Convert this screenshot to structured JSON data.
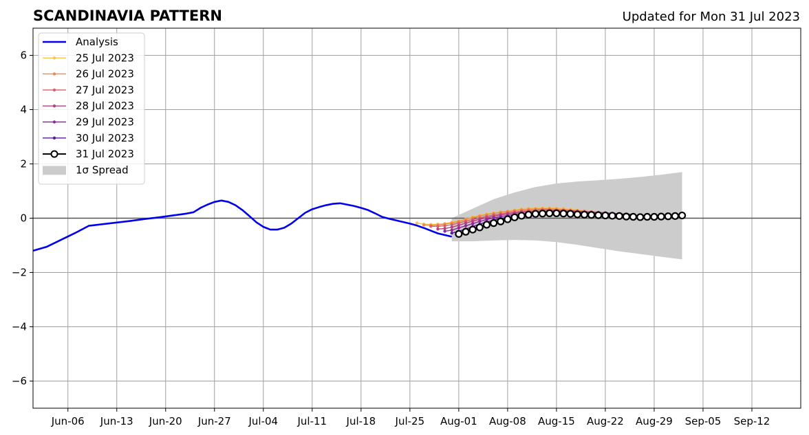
{
  "chart_data": {
    "type": "line",
    "title": "SCANDINAVIA PATTERN",
    "subtitle": "Updated for Mon 31 Jul 2023",
    "xlabel": "",
    "ylabel": "",
    "xlim": [
      "2023-06-01",
      "2023-09-19"
    ],
    "ylim": [
      -7,
      7
    ],
    "grid": true,
    "legend_position": "top-left",
    "x_ticks": [
      "Jun-06",
      "Jun-13",
      "Jun-20",
      "Jun-27",
      "Jul-04",
      "Jul-11",
      "Jul-18",
      "Jul-25",
      "Aug-01",
      "Aug-08",
      "Aug-15",
      "Aug-22",
      "Aug-29",
      "Sep-05",
      "Sep-12"
    ],
    "x_tick_dates": [
      "2023-06-06",
      "2023-06-13",
      "2023-06-20",
      "2023-06-27",
      "2023-07-04",
      "2023-07-11",
      "2023-07-18",
      "2023-07-25",
      "2023-08-01",
      "2023-08-08",
      "2023-08-15",
      "2023-08-22",
      "2023-08-29",
      "2023-09-05",
      "2023-09-12"
    ],
    "y_ticks": [
      "−6",
      "−4",
      "−2",
      "0",
      "2",
      "4",
      "6"
    ],
    "y_tick_values": [
      -6,
      -4,
      -2,
      0,
      2,
      4,
      6
    ],
    "analysis": {
      "name": "Analysis",
      "color": "#0000ee",
      "x": [
        "2023-06-01",
        "2023-06-03",
        "2023-06-05",
        "2023-06-07",
        "2023-06-09",
        "2023-06-11",
        "2023-06-13",
        "2023-06-15",
        "2023-06-17",
        "2023-06-19",
        "2023-06-21",
        "2023-06-23",
        "2023-06-24",
        "2023-06-25",
        "2023-06-26",
        "2023-06-27",
        "2023-06-28",
        "2023-06-29",
        "2023-06-30",
        "2023-07-01",
        "2023-07-02",
        "2023-07-03",
        "2023-07-04",
        "2023-07-05",
        "2023-07-06",
        "2023-07-07",
        "2023-07-08",
        "2023-07-09",
        "2023-07-10",
        "2023-07-11",
        "2023-07-12",
        "2023-07-13",
        "2023-07-14",
        "2023-07-15",
        "2023-07-16",
        "2023-07-17",
        "2023-07-18",
        "2023-07-19",
        "2023-07-20",
        "2023-07-21",
        "2023-07-22",
        "2023-07-23",
        "2023-07-24",
        "2023-07-25",
        "2023-07-26",
        "2023-07-27",
        "2023-07-28",
        "2023-07-29",
        "2023-07-30",
        "2023-07-31"
      ],
      "y": [
        -1.2,
        -1.05,
        -0.8,
        -0.55,
        -0.28,
        -0.22,
        -0.16,
        -0.1,
        -0.03,
        0.03,
        0.1,
        0.17,
        0.22,
        0.38,
        0.5,
        0.6,
        0.65,
        0.6,
        0.48,
        0.3,
        0.08,
        -0.15,
        -0.32,
        -0.42,
        -0.42,
        -0.35,
        -0.2,
        0.0,
        0.2,
        0.33,
        0.41,
        0.48,
        0.53,
        0.55,
        0.5,
        0.45,
        0.38,
        0.3,
        0.18,
        0.05,
        -0.02,
        -0.08,
        -0.14,
        -0.2,
        -0.27,
        -0.36,
        -0.46,
        -0.56,
        -0.62,
        -0.68
      ]
    },
    "spread": {
      "name": "1σ Spread",
      "color": "#cccccc",
      "x": [
        "2023-07-31",
        "2023-08-03",
        "2023-08-06",
        "2023-08-09",
        "2023-08-12",
        "2023-08-15",
        "2023-08-18",
        "2023-08-21",
        "2023-08-24",
        "2023-08-27",
        "2023-08-30",
        "2023-09-02"
      ],
      "upper": [
        0.0,
        0.35,
        0.7,
        0.95,
        1.15,
        1.28,
        1.35,
        1.4,
        1.45,
        1.52,
        1.6,
        1.7
      ],
      "lower": [
        -0.85,
        -0.85,
        -0.82,
        -0.8,
        -0.82,
        -0.88,
        -0.98,
        -1.1,
        -1.22,
        -1.32,
        -1.42,
        -1.52
      ]
    },
    "series": [
      {
        "name": "25 Jul 2023",
        "color": "#f9c349",
        "x": [
          "2023-07-26",
          "2023-07-27",
          "2023-07-28",
          "2023-07-29",
          "2023-07-30",
          "2023-07-31",
          "2023-08-01",
          "2023-08-02",
          "2023-08-03",
          "2023-08-04",
          "2023-08-05",
          "2023-08-06",
          "2023-08-07",
          "2023-08-08",
          "2023-08-09",
          "2023-08-10",
          "2023-08-11",
          "2023-08-12",
          "2023-08-13",
          "2023-08-14",
          "2023-08-15",
          "2023-08-16",
          "2023-08-17",
          "2023-08-18",
          "2023-08-19",
          "2023-08-20"
        ],
        "y": [
          -0.18,
          -0.22,
          -0.23,
          -0.22,
          -0.2,
          -0.15,
          -0.1,
          -0.03,
          0.04,
          0.1,
          0.15,
          0.19,
          0.23,
          0.26,
          0.3,
          0.34,
          0.36,
          0.37,
          0.38,
          0.38,
          0.37,
          0.35,
          0.33,
          0.3,
          0.27,
          0.24
        ]
      },
      {
        "name": "26 Jul 2023",
        "color": "#f08a4b",
        "x": [
          "2023-07-27",
          "2023-07-28",
          "2023-07-29",
          "2023-07-30",
          "2023-07-31",
          "2023-08-01",
          "2023-08-02",
          "2023-08-03",
          "2023-08-04",
          "2023-08-05",
          "2023-08-06",
          "2023-08-07",
          "2023-08-08",
          "2023-08-09",
          "2023-08-10",
          "2023-08-11",
          "2023-08-12",
          "2023-08-13",
          "2023-08-14",
          "2023-08-15",
          "2023-08-16",
          "2023-08-17",
          "2023-08-18",
          "2023-08-19",
          "2023-08-20",
          "2023-08-21"
        ],
        "y": [
          -0.25,
          -0.26,
          -0.25,
          -0.22,
          -0.18,
          -0.12,
          -0.05,
          0.02,
          0.08,
          0.13,
          0.18,
          0.22,
          0.25,
          0.28,
          0.31,
          0.33,
          0.34,
          0.35,
          0.35,
          0.34,
          0.32,
          0.3,
          0.28,
          0.26,
          0.24,
          0.22
        ]
      },
      {
        "name": "27 Jul 2023",
        "color": "#dc5e69",
        "x": [
          "2023-07-28",
          "2023-07-29",
          "2023-07-30",
          "2023-07-31",
          "2023-08-01",
          "2023-08-02",
          "2023-08-03",
          "2023-08-04",
          "2023-08-05",
          "2023-08-06",
          "2023-08-07",
          "2023-08-08",
          "2023-08-09",
          "2023-08-10",
          "2023-08-11",
          "2023-08-12",
          "2023-08-13",
          "2023-08-14",
          "2023-08-15",
          "2023-08-16",
          "2023-08-17",
          "2023-08-18",
          "2023-08-19",
          "2023-08-20",
          "2023-08-21",
          "2023-08-22",
          "2023-08-23"
        ],
        "y": [
          -0.3,
          -0.3,
          -0.28,
          -0.24,
          -0.18,
          -0.11,
          -0.05,
          0.01,
          0.07,
          0.12,
          0.16,
          0.2,
          0.23,
          0.26,
          0.28,
          0.3,
          0.31,
          0.31,
          0.3,
          0.29,
          0.28,
          0.26,
          0.24,
          0.22,
          0.2,
          0.19,
          0.17
        ]
      },
      {
        "name": "28 Jul 2023",
        "color": "#b8407f",
        "x": [
          "2023-07-29",
          "2023-07-30",
          "2023-07-31",
          "2023-08-01",
          "2023-08-02",
          "2023-08-03",
          "2023-08-04",
          "2023-08-05",
          "2023-08-06",
          "2023-08-07",
          "2023-08-08",
          "2023-08-09",
          "2023-08-10",
          "2023-08-11",
          "2023-08-12",
          "2023-08-13",
          "2023-08-14",
          "2023-08-15",
          "2023-08-16",
          "2023-08-17",
          "2023-08-18",
          "2023-08-19",
          "2023-08-20",
          "2023-08-21",
          "2023-08-22",
          "2023-08-23",
          "2023-08-24"
        ],
        "y": [
          -0.4,
          -0.38,
          -0.33,
          -0.26,
          -0.18,
          -0.11,
          -0.04,
          0.02,
          0.07,
          0.12,
          0.16,
          0.19,
          0.22,
          0.24,
          0.25,
          0.26,
          0.27,
          0.27,
          0.26,
          0.26,
          0.25,
          0.24,
          0.22,
          0.21,
          0.2,
          0.18,
          0.17
        ]
      },
      {
        "name": "29 Jul 2023",
        "color": "#9226a0",
        "x": [
          "2023-07-30",
          "2023-07-31",
          "2023-08-01",
          "2023-08-02",
          "2023-08-03",
          "2023-08-04",
          "2023-08-05",
          "2023-08-06",
          "2023-08-07",
          "2023-08-08",
          "2023-08-09",
          "2023-08-10",
          "2023-08-11",
          "2023-08-12",
          "2023-08-13",
          "2023-08-14",
          "2023-08-15",
          "2023-08-16",
          "2023-08-17",
          "2023-08-18",
          "2023-08-19",
          "2023-08-20",
          "2023-08-21",
          "2023-08-22",
          "2023-08-23",
          "2023-08-24",
          "2023-08-25",
          "2023-08-26"
        ],
        "y": [
          -0.48,
          -0.44,
          -0.36,
          -0.28,
          -0.2,
          -0.12,
          -0.05,
          0.01,
          0.06,
          0.1,
          0.14,
          0.17,
          0.19,
          0.21,
          0.22,
          0.23,
          0.24,
          0.24,
          0.23,
          0.22,
          0.21,
          0.2,
          0.19,
          0.18,
          0.17,
          0.16,
          0.15,
          0.14
        ]
      },
      {
        "name": "30 Jul 2023",
        "color": "#5a1a96",
        "x": [
          "2023-07-31",
          "2023-08-01",
          "2023-08-02",
          "2023-08-03",
          "2023-08-04",
          "2023-08-05",
          "2023-08-06",
          "2023-08-07",
          "2023-08-08",
          "2023-08-09",
          "2023-08-10",
          "2023-08-11",
          "2023-08-12",
          "2023-08-13",
          "2023-08-14",
          "2023-08-15",
          "2023-08-16",
          "2023-08-17",
          "2023-08-18",
          "2023-08-19",
          "2023-08-20",
          "2023-08-21",
          "2023-08-22",
          "2023-08-23",
          "2023-08-24",
          "2023-08-25",
          "2023-08-26",
          "2023-08-27",
          "2023-08-28"
        ],
        "y": [
          -0.55,
          -0.48,
          -0.4,
          -0.31,
          -0.22,
          -0.14,
          -0.07,
          -0.01,
          0.04,
          0.08,
          0.11,
          0.14,
          0.16,
          0.17,
          0.18,
          0.18,
          0.18,
          0.17,
          0.17,
          0.16,
          0.15,
          0.14,
          0.13,
          0.12,
          0.12,
          0.11,
          0.11,
          0.1,
          0.1
        ]
      },
      {
        "name": "31 Jul 2023",
        "color": "#000000",
        "x": [
          "2023-08-01",
          "2023-08-02",
          "2023-08-03",
          "2023-08-04",
          "2023-08-05",
          "2023-08-06",
          "2023-08-07",
          "2023-08-08",
          "2023-08-09",
          "2023-08-10",
          "2023-08-11",
          "2023-08-12",
          "2023-08-13",
          "2023-08-14",
          "2023-08-15",
          "2023-08-16",
          "2023-08-17",
          "2023-08-18",
          "2023-08-19",
          "2023-08-20",
          "2023-08-21",
          "2023-08-22",
          "2023-08-23",
          "2023-08-24",
          "2023-08-25",
          "2023-08-26",
          "2023-08-27",
          "2023-08-28",
          "2023-08-29",
          "2023-08-30",
          "2023-08-31",
          "2023-09-01",
          "2023-09-02"
        ],
        "y": [
          -0.58,
          -0.5,
          -0.42,
          -0.34,
          -0.24,
          -0.18,
          -0.12,
          -0.04,
          0.03,
          0.09,
          0.13,
          0.16,
          0.17,
          0.18,
          0.18,
          0.17,
          0.16,
          0.14,
          0.13,
          0.12,
          0.11,
          0.1,
          0.09,
          0.08,
          0.06,
          0.05,
          0.04,
          0.05,
          0.05,
          0.06,
          0.07,
          0.08,
          0.1
        ]
      }
    ]
  }
}
